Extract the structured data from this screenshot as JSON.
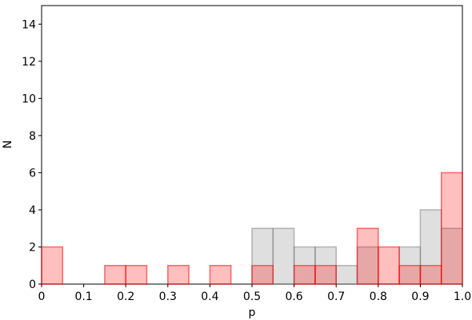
{
  "chart_data": {
    "type": "histogram",
    "xlabel": "p",
    "ylabel": "N",
    "bins": [
      0,
      0.05,
      0.1,
      0.15,
      0.2,
      0.25,
      0.3,
      0.35,
      0.4,
      0.45,
      0.5,
      0.55,
      0.6,
      0.65,
      0.7,
      0.75,
      0.8,
      0.85,
      0.9,
      0.95,
      1
    ],
    "series": [
      {
        "color": "#808080",
        "values": [
          0,
          0,
          0,
          0,
          0,
          0,
          0,
          0,
          0,
          0,
          3,
          3,
          2,
          2,
          1,
          2,
          0,
          2,
          4,
          3
        ]
      },
      {
        "color": "#ff0000",
        "values": [
          2,
          0,
          0,
          1,
          1,
          0,
          1,
          0,
          1,
          0,
          1,
          0,
          1,
          1,
          0,
          3,
          2,
          1,
          1,
          6
        ]
      }
    ],
    "xlim": [
      0,
      1
    ],
    "xticks": [
      0,
      0.1,
      0.2,
      0.3,
      0.4,
      0.5,
      0.6,
      0.7,
      0.8,
      0.9,
      {
        "value": 1,
        "label": "1.0"
      }
    ],
    "ylim": [
      0,
      15
    ],
    "yticks": [
      0,
      2,
      4,
      6,
      8,
      10,
      12,
      14
    ]
  }
}
